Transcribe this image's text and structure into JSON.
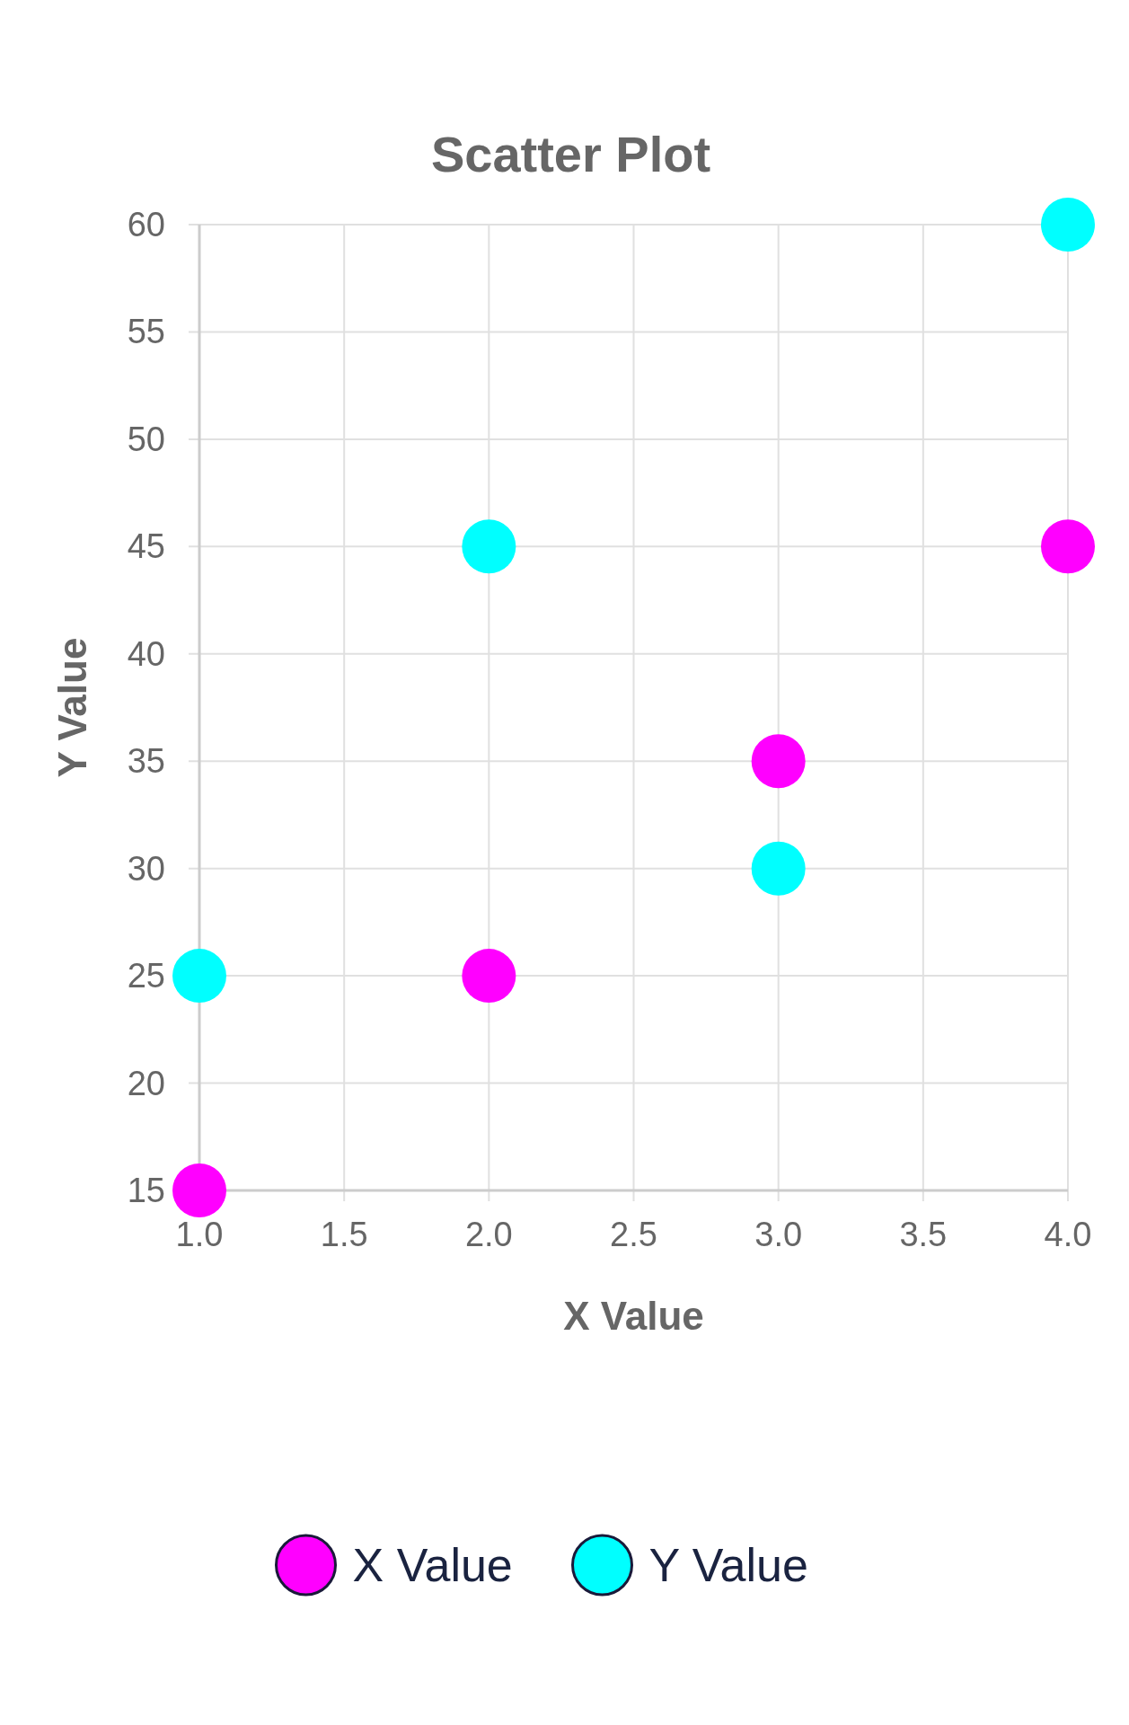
{
  "chart_data": {
    "type": "scatter",
    "title": "Scatter Plot",
    "xlabel": "X Value",
    "ylabel": "Y Value",
    "x": [
      1,
      2,
      3,
      4
    ],
    "series": [
      {
        "name": "X Value",
        "color": "#ff00ff",
        "values": [
          15,
          25,
          35,
          45
        ]
      },
      {
        "name": "Y Value",
        "color": "#00ffff",
        "values": [
          25,
          45,
          30,
          60
        ]
      }
    ],
    "xlim": [
      1,
      4
    ],
    "xticks": [
      {
        "value": 1,
        "label": "1.0"
      },
      {
        "value": 1.5,
        "label": "1.5"
      },
      {
        "value": 2,
        "label": "2.0"
      },
      {
        "value": 2.5,
        "label": "2.5"
      },
      {
        "value": 3,
        "label": "3.0"
      },
      {
        "value": 3.5,
        "label": "3.5"
      },
      {
        "value": 4,
        "label": "4.0"
      }
    ],
    "ylim": [
      15,
      60
    ],
    "yticks": [
      15,
      20,
      25,
      30,
      35,
      40,
      45,
      50,
      55,
      60
    ],
    "grid": true,
    "legend": "bottom",
    "marker": "circle"
  }
}
